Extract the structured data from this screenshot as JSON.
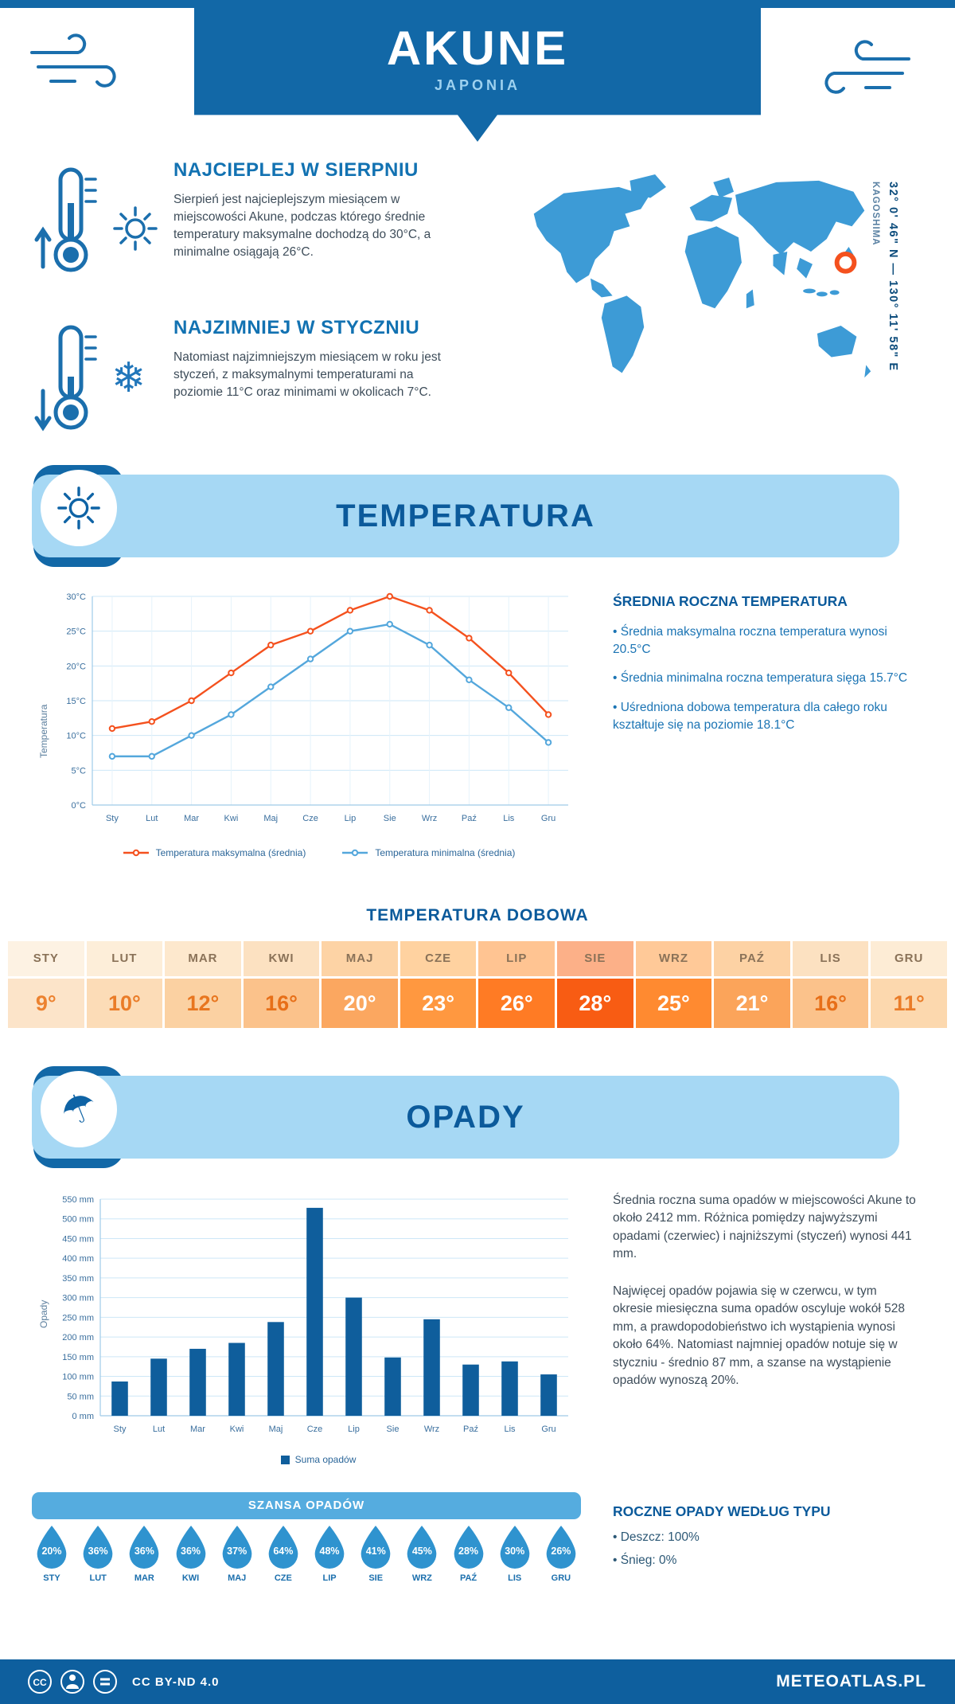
{
  "colors": {
    "primary_dark": "#1268a7",
    "banner_light": "#a6d8f4",
    "section_title": "#0b5a9b",
    "accent_orange": "#f4511e",
    "line_min_blue": "#54a7dc",
    "bar_blue": "#0f5e9c",
    "drop_blue": "#2f93cf"
  },
  "header": {
    "title": "AKUNE",
    "subtitle": "JAPONIA"
  },
  "intro": {
    "warm": {
      "title": "NAJCIEPLEJ W SIERPNIU",
      "text": "Sierpień jest najcieplejszym miesiącem w miejscowości Akune, podczas którego średnie temperatury maksymalne dochodzą do 30°C, a minimalne osiągają 26°C."
    },
    "cold": {
      "title": "NAJZIMNIEJ W STYCZNIU",
      "text": "Natomiast najzimniejszym miesiącem w roku jest styczeń, z maksymalnymi temperaturami na poziomie 11°C oraz minimami w okolicach 7°C."
    }
  },
  "map": {
    "region": "KAGOSHIMA",
    "coordinates": "32° 0' 46\" N — 130° 11' 58\" E"
  },
  "temperature": {
    "section_title": "TEMPERATURA",
    "sidebar_title": "ŚREDNIA ROCZNA TEMPERATURA",
    "bullets": [
      "• Średnia maksymalna roczna temperatura wynosi 20.5°C",
      "• Średnia minimalna roczna temperatura sięga 15.7°C",
      "• Uśredniona dobowa temperatura dla całego roku kształtuje się na poziomie 18.1°C"
    ]
  },
  "chart_data": [
    {
      "type": "line",
      "title": "TEMPERATURA",
      "categories": [
        "Sty",
        "Lut",
        "Mar",
        "Kwi",
        "Maj",
        "Cze",
        "Lip",
        "Sie",
        "Wrz",
        "Paź",
        "Lis",
        "Gru"
      ],
      "series": [
        {
          "name": "Temperatura maksymalna (średnia)",
          "color": "#f4511e",
          "values": [
            11,
            12,
            15,
            19,
            23,
            25,
            28,
            30,
            28,
            24,
            19,
            13
          ]
        },
        {
          "name": "Temperatura minimalna (średnia)",
          "color": "#54a7dc",
          "values": [
            7,
            7,
            10,
            13,
            17,
            21,
            25,
            26,
            23,
            18,
            14,
            9
          ]
        }
      ],
      "ylabel": "Temperatura",
      "ylim": [
        0,
        30
      ],
      "ytick_step": 5,
      "ytick_suffix": "°C",
      "grid": true,
      "legend_position": "bottom"
    },
    {
      "type": "bar",
      "title": "OPADY",
      "categories": [
        "Sty",
        "Lut",
        "Mar",
        "Kwi",
        "Maj",
        "Cze",
        "Lip",
        "Sie",
        "Wrz",
        "Paź",
        "Lis",
        "Gru"
      ],
      "values": [
        87,
        145,
        170,
        185,
        238,
        528,
        300,
        148,
        245,
        130,
        138,
        105
      ],
      "color": "#0f5e9c",
      "ylabel": "Opady",
      "ylim": [
        0,
        550
      ],
      "ytick_step": 50,
      "ytick_suffix": " mm",
      "legend": "Suma opadów",
      "grid": true,
      "legend_position": "bottom"
    }
  ],
  "daily_temp": {
    "title": "TEMPERATURA DOBOWA",
    "columns": [
      {
        "month": "STY",
        "value": "9°",
        "bg": "#fce4c9",
        "header_bg": "#fdf2e3",
        "fg": "#ec8230"
      },
      {
        "month": "LUT",
        "value": "10°",
        "bg": "#fcdcb7",
        "header_bg": "#fdeed9",
        "fg": "#ea7c28"
      },
      {
        "month": "MAR",
        "value": "12°",
        "bg": "#fbd1a2",
        "header_bg": "#fde8cd",
        "fg": "#e8761f"
      },
      {
        "month": "KWI",
        "value": "16°",
        "bg": "#fbc28b",
        "header_bg": "#fce1c1",
        "fg": "#e76f18"
      },
      {
        "month": "MAJ",
        "value": "20°",
        "bg": "#fba760",
        "header_bg": "#fdd3a5",
        "fg": "#ffffff"
      },
      {
        "month": "CZE",
        "value": "23°",
        "bg": "#ff9840",
        "header_bg": "#ffd2a0",
        "fg": "#ffffff"
      },
      {
        "month": "LIP",
        "value": "26°",
        "bg": "#ff7b24",
        "header_bg": "#ffc492",
        "fg": "#ffffff"
      },
      {
        "month": "SIE",
        "value": "28°",
        "bg": "#f85c13",
        "header_bg": "#fcb088",
        "fg": "#ffffff"
      },
      {
        "month": "WRZ",
        "value": "25°",
        "bg": "#ff8a30",
        "header_bg": "#ffc998",
        "fg": "#ffffff"
      },
      {
        "month": "PAŹ",
        "value": "21°",
        "bg": "#fba45a",
        "header_bg": "#fdd2a4",
        "fg": "#ffffff"
      },
      {
        "month": "LIS",
        "value": "16°",
        "bg": "#fbc28b",
        "header_bg": "#fce1c1",
        "fg": "#e76f18"
      },
      {
        "month": "GRU",
        "value": "11°",
        "bg": "#fcd8ae",
        "header_bg": "#fdecd5",
        "fg": "#ea7c28"
      }
    ]
  },
  "precipitation": {
    "section_title": "OPADY",
    "paragraph1": "Średnia roczna suma opadów w miejscowości Akune to około 2412 mm. Różnica pomiędzy najwyższymi opadami (czerwiec) i najniższymi (styczeń) wynosi 441 mm.",
    "paragraph2": "Najwięcej opadów pojawia się w czerwcu, w tym okresie miesięczna suma opadów oscyluje wokół 528 mm, a prawdopodobieństwo ich wystąpienia wynosi około 64%. Natomiast najmniej opadów notuje się w styczniu - średnio 87 mm, a szanse na wystąpienie opadów wynoszą 20%.",
    "chance_title": "SZANSA OPADÓW",
    "chance": [
      {
        "month": "STY",
        "value": "20%"
      },
      {
        "month": "LUT",
        "value": "36%"
      },
      {
        "month": "MAR",
        "value": "36%"
      },
      {
        "month": "KWI",
        "value": "36%"
      },
      {
        "month": "MAJ",
        "value": "37%"
      },
      {
        "month": "CZE",
        "value": "64%"
      },
      {
        "month": "LIP",
        "value": "48%"
      },
      {
        "month": "SIE",
        "value": "41%"
      },
      {
        "month": "WRZ",
        "value": "45%"
      },
      {
        "month": "PAŹ",
        "value": "28%"
      },
      {
        "month": "LIS",
        "value": "30%"
      },
      {
        "month": "GRU",
        "value": "26%"
      }
    ],
    "type_title": "ROCZNE OPADY WEDŁUG TYPU",
    "types": [
      "• Deszcz: 100%",
      "• Śnieg: 0%"
    ]
  },
  "footer": {
    "license": "CC BY-ND 4.0",
    "site": "METEOATLAS.PL"
  }
}
